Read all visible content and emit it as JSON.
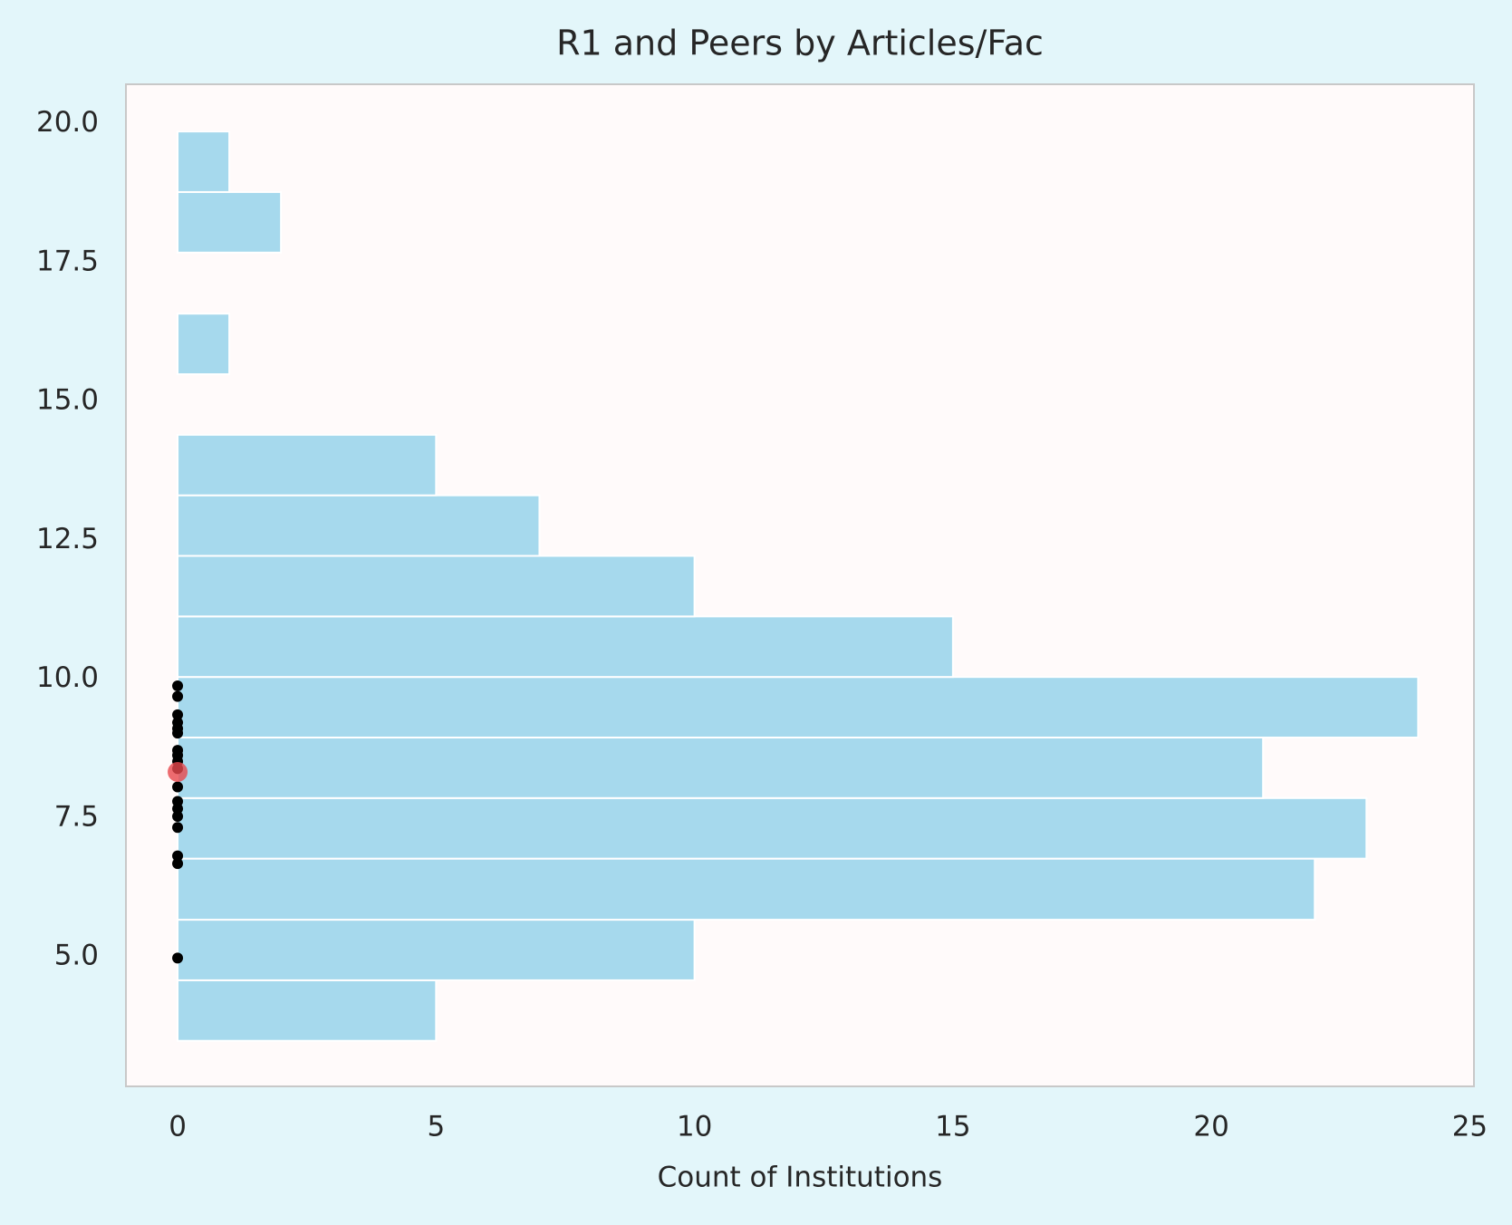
{
  "chart_data": {
    "type": "histogram",
    "orientation": "horizontal",
    "title": "R1 and Peers by Articles/Fac",
    "xlabel": "Count of Institutions",
    "bins": [
      3.49,
      4.58,
      5.67,
      6.77,
      7.86,
      8.95,
      10.04,
      11.13,
      12.22,
      13.31,
      14.4,
      15.49,
      16.58,
      17.68,
      18.77,
      19.86
    ],
    "counts": [
      5,
      10,
      22,
      23,
      21,
      24,
      15,
      10,
      7,
      5,
      0,
      1,
      0,
      2,
      1
    ],
    "color": "#a6d9ed",
    "edgecolor": "#ffffff",
    "points": {
      "x": [
        0,
        0,
        0,
        0,
        0,
        0,
        0,
        0,
        0,
        0,
        0,
        0,
        0,
        0,
        0,
        0,
        0,
        0
      ],
      "y": [
        9.88,
        9.69,
        9.36,
        9.22,
        9.11,
        9.03,
        8.72,
        8.63,
        8.52,
        8.39,
        8.06,
        7.8,
        7.67,
        7.53,
        7.33,
        6.82,
        6.68,
        4.98
      ],
      "color": "#000000"
    },
    "highlight": {
      "x": [
        0
      ],
      "y": [
        8.33
      ],
      "color": "#e8474c"
    },
    "xlim": [
      -1,
      25.08
    ],
    "ylim": [
      2.67,
      20.71
    ],
    "xticks": [
      0,
      5,
      10,
      15,
      20,
      25
    ],
    "yticks": [
      {
        "value": 5,
        "label": "5.0"
      },
      {
        "value": 7.5,
        "label": "7.5"
      },
      {
        "value": 10,
        "label": "10.0"
      },
      {
        "value": 12.5,
        "label": "12.5"
      },
      {
        "value": 15,
        "label": "15.0"
      },
      {
        "value": 17.5,
        "label": "17.5"
      },
      {
        "value": 20,
        "label": "20.0"
      }
    ],
    "grid": false
  }
}
